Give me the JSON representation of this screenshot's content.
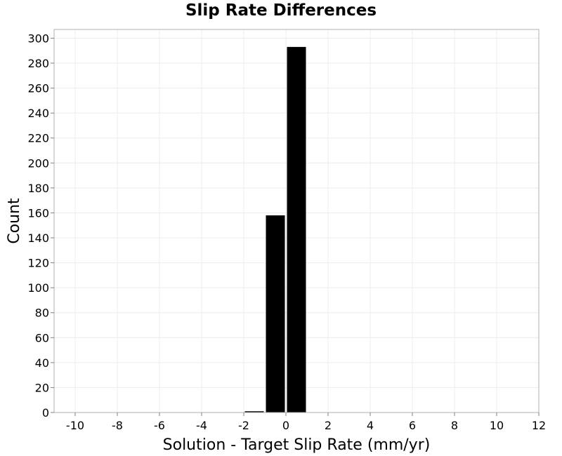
{
  "chart_data": {
    "type": "bar",
    "title": "Slip Rate Differences",
    "xlabel": "Solution - Target Slip Rate (mm/yr)",
    "ylabel": "Count",
    "xlim": [
      -11,
      12
    ],
    "ylim": [
      0,
      307
    ],
    "xticks": [
      -10,
      -8,
      -6,
      -4,
      -2,
      0,
      2,
      4,
      6,
      8,
      10,
      12
    ],
    "yticks": [
      0,
      20,
      40,
      60,
      80,
      100,
      120,
      140,
      160,
      180,
      200,
      220,
      240,
      260,
      280,
      300
    ],
    "bin_width": 1,
    "bins": [
      {
        "x": -1.5,
        "value": 1
      },
      {
        "x": -0.5,
        "value": 158
      },
      {
        "x": 0.5,
        "value": 293
      }
    ],
    "bar_color": "#000000",
    "grid": true,
    "grid_color": "#ececec"
  }
}
